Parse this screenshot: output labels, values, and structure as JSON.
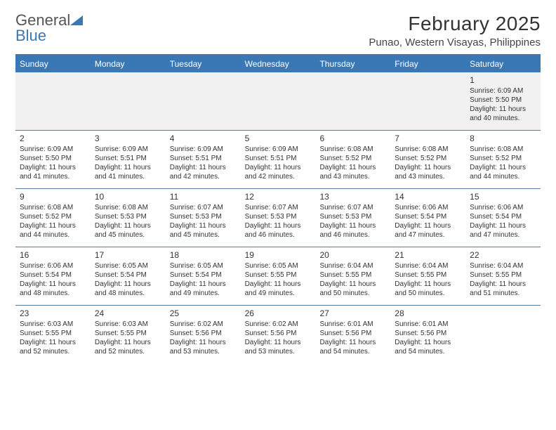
{
  "logo": {
    "text_gray": "General",
    "text_blue": "Blue",
    "triangle_color": "#3a78b5"
  },
  "title": "February 2025",
  "location": "Punao, Western Visayas, Philippines",
  "colors": {
    "header_bar": "#3a78b5",
    "week_divider": "#5a7a9a",
    "blank_bg": "#f1f1f1",
    "page_bg": "#ffffff",
    "text": "#333333"
  },
  "typography": {
    "title_fontsize": 28,
    "location_fontsize": 15,
    "weekday_fontsize": 12,
    "daynum_fontsize": 12,
    "body_fontsize": 10,
    "font_family": "Arial"
  },
  "weekdays": [
    "Sunday",
    "Monday",
    "Tuesday",
    "Wednesday",
    "Thursday",
    "Friday",
    "Saturday"
  ],
  "weeks": [
    [
      null,
      null,
      null,
      null,
      null,
      null,
      {
        "n": "1",
        "sunrise": "6:09 AM",
        "sunset": "5:50 PM",
        "daylight": "11 hours and 40 minutes."
      }
    ],
    [
      {
        "n": "2",
        "sunrise": "6:09 AM",
        "sunset": "5:50 PM",
        "daylight": "11 hours and 41 minutes."
      },
      {
        "n": "3",
        "sunrise": "6:09 AM",
        "sunset": "5:51 PM",
        "daylight": "11 hours and 41 minutes."
      },
      {
        "n": "4",
        "sunrise": "6:09 AM",
        "sunset": "5:51 PM",
        "daylight": "11 hours and 42 minutes."
      },
      {
        "n": "5",
        "sunrise": "6:09 AM",
        "sunset": "5:51 PM",
        "daylight": "11 hours and 42 minutes."
      },
      {
        "n": "6",
        "sunrise": "6:08 AM",
        "sunset": "5:52 PM",
        "daylight": "11 hours and 43 minutes."
      },
      {
        "n": "7",
        "sunrise": "6:08 AM",
        "sunset": "5:52 PM",
        "daylight": "11 hours and 43 minutes."
      },
      {
        "n": "8",
        "sunrise": "6:08 AM",
        "sunset": "5:52 PM",
        "daylight": "11 hours and 44 minutes."
      }
    ],
    [
      {
        "n": "9",
        "sunrise": "6:08 AM",
        "sunset": "5:52 PM",
        "daylight": "11 hours and 44 minutes."
      },
      {
        "n": "10",
        "sunrise": "6:08 AM",
        "sunset": "5:53 PM",
        "daylight": "11 hours and 45 minutes."
      },
      {
        "n": "11",
        "sunrise": "6:07 AM",
        "sunset": "5:53 PM",
        "daylight": "11 hours and 45 minutes."
      },
      {
        "n": "12",
        "sunrise": "6:07 AM",
        "sunset": "5:53 PM",
        "daylight": "11 hours and 46 minutes."
      },
      {
        "n": "13",
        "sunrise": "6:07 AM",
        "sunset": "5:53 PM",
        "daylight": "11 hours and 46 minutes."
      },
      {
        "n": "14",
        "sunrise": "6:06 AM",
        "sunset": "5:54 PM",
        "daylight": "11 hours and 47 minutes."
      },
      {
        "n": "15",
        "sunrise": "6:06 AM",
        "sunset": "5:54 PM",
        "daylight": "11 hours and 47 minutes."
      }
    ],
    [
      {
        "n": "16",
        "sunrise": "6:06 AM",
        "sunset": "5:54 PM",
        "daylight": "11 hours and 48 minutes."
      },
      {
        "n": "17",
        "sunrise": "6:05 AM",
        "sunset": "5:54 PM",
        "daylight": "11 hours and 48 minutes."
      },
      {
        "n": "18",
        "sunrise": "6:05 AM",
        "sunset": "5:54 PM",
        "daylight": "11 hours and 49 minutes."
      },
      {
        "n": "19",
        "sunrise": "6:05 AM",
        "sunset": "5:55 PM",
        "daylight": "11 hours and 49 minutes."
      },
      {
        "n": "20",
        "sunrise": "6:04 AM",
        "sunset": "5:55 PM",
        "daylight": "11 hours and 50 minutes."
      },
      {
        "n": "21",
        "sunrise": "6:04 AM",
        "sunset": "5:55 PM",
        "daylight": "11 hours and 50 minutes."
      },
      {
        "n": "22",
        "sunrise": "6:04 AM",
        "sunset": "5:55 PM",
        "daylight": "11 hours and 51 minutes."
      }
    ],
    [
      {
        "n": "23",
        "sunrise": "6:03 AM",
        "sunset": "5:55 PM",
        "daylight": "11 hours and 52 minutes."
      },
      {
        "n": "24",
        "sunrise": "6:03 AM",
        "sunset": "5:55 PM",
        "daylight": "11 hours and 52 minutes."
      },
      {
        "n": "25",
        "sunrise": "6:02 AM",
        "sunset": "5:56 PM",
        "daylight": "11 hours and 53 minutes."
      },
      {
        "n": "26",
        "sunrise": "6:02 AM",
        "sunset": "5:56 PM",
        "daylight": "11 hours and 53 minutes."
      },
      {
        "n": "27",
        "sunrise": "6:01 AM",
        "sunset": "5:56 PM",
        "daylight": "11 hours and 54 minutes."
      },
      {
        "n": "28",
        "sunrise": "6:01 AM",
        "sunset": "5:56 PM",
        "daylight": "11 hours and 54 minutes."
      },
      null
    ]
  ],
  "labels": {
    "sunrise": "Sunrise:",
    "sunset": "Sunset:",
    "daylight": "Daylight:"
  }
}
